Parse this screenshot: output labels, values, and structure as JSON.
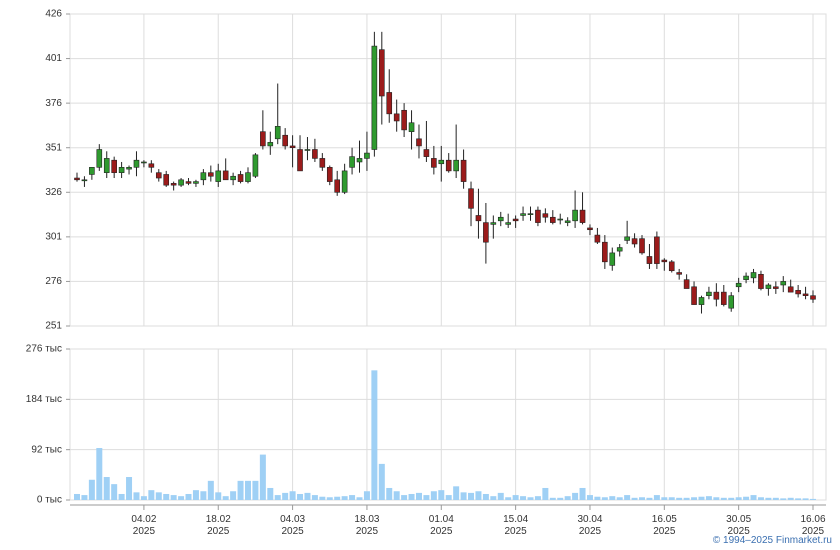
{
  "chart_data": [
    {
      "type": "candlestick",
      "open": [
        334,
        333,
        336,
        340,
        337,
        344,
        337,
        339,
        340,
        343,
        342,
        337,
        336,
        331,
        330,
        332,
        331,
        333,
        337,
        332,
        338,
        333,
        336,
        332,
        335,
        360,
        352,
        356,
        358,
        352,
        350,
        350,
        350,
        345,
        340,
        333,
        326,
        340,
        343,
        345,
        350,
        406,
        382,
        370,
        372,
        360,
        356,
        350,
        345,
        342,
        344,
        338,
        344,
        328,
        313,
        309,
        308,
        310,
        308,
        311,
        313,
        314,
        316,
        314,
        312,
        311,
        309,
        310,
        316,
        306,
        302,
        298,
        285,
        293,
        299,
        300,
        300,
        290,
        301,
        288,
        287,
        281,
        277,
        273,
        263,
        268,
        270,
        270,
        261,
        273,
        277,
        278,
        280,
        272,
        273,
        274,
        273,
        271,
        269,
        268
      ],
      "high": [
        337,
        335,
        340,
        353,
        349,
        346,
        343,
        341,
        349,
        344,
        344,
        339,
        338,
        332,
        334,
        334,
        333,
        339,
        341,
        342,
        345,
        337,
        338,
        340,
        348,
        372,
        360,
        387,
        362,
        358,
        358,
        357,
        356,
        348,
        341,
        338,
        342,
        351,
        355,
        360,
        416,
        416,
        395,
        378,
        376,
        372,
        364,
        366,
        352,
        352,
        348,
        364,
        350,
        332,
        328,
        320,
        313,
        315,
        314,
        313,
        318,
        318,
        318,
        317,
        316,
        314,
        312,
        327,
        326,
        308,
        306,
        302,
        295,
        297,
        310,
        303,
        302,
        297,
        304,
        289,
        288,
        283,
        280,
        276,
        268,
        273,
        275,
        274,
        270,
        278,
        281,
        283,
        282,
        275,
        276,
        279,
        277,
        274,
        273,
        271
      ],
      "low": [
        332,
        329,
        333,
        338,
        334,
        334,
        334,
        336,
        335,
        340,
        337,
        332,
        329,
        327,
        329,
        330,
        329,
        330,
        332,
        329,
        333,
        330,
        331,
        331,
        334,
        350,
        347,
        353,
        350,
        340,
        338,
        344,
        343,
        338,
        330,
        324,
        325,
        336,
        337,
        338,
        346,
        364,
        365,
        360,
        357,
        350,
        345,
        343,
        336,
        332,
        337,
        334,
        328,
        307,
        300,
        286,
        300,
        307,
        306,
        306,
        310,
        310,
        307,
        309,
        308,
        308,
        307,
        306,
        308,
        302,
        297,
        283,
        282,
        290,
        297,
        295,
        291,
        283,
        283,
        282,
        281,
        277,
        272,
        263,
        258,
        266,
        262,
        262,
        259,
        270,
        275,
        275,
        271,
        268,
        269,
        270,
        270,
        267,
        266,
        264
      ],
      "close": [
        333,
        333,
        340,
        350,
        345,
        337,
        340,
        340,
        344,
        343,
        340,
        334,
        330,
        330,
        333,
        331,
        332,
        337,
        335,
        338,
        333,
        335,
        332,
        337,
        347,
        352,
        354,
        363,
        352,
        351,
        338,
        350,
        345,
        340,
        332,
        326,
        338,
        346,
        345,
        348,
        408,
        380,
        370,
        366,
        361,
        365,
        352,
        346,
        340,
        344,
        338,
        344,
        332,
        317,
        310,
        298,
        309,
        312,
        309,
        310,
        314,
        314,
        309,
        312,
        309,
        311,
        310,
        316,
        309,
        305,
        298,
        287,
        292,
        295,
        301,
        297,
        292,
        286,
        286,
        287,
        282,
        280,
        272,
        263,
        267,
        270,
        266,
        263,
        268,
        275,
        279,
        281,
        272,
        274,
        272,
        276,
        270,
        269,
        268,
        266
      ],
      "ylim": [
        251,
        426
      ],
      "yticks": [
        251,
        276,
        301,
        326,
        351,
        376,
        401,
        426
      ],
      "up_color": "#2f9a2f",
      "down_color": "#9b1b1b",
      "grid": true
    },
    {
      "type": "bar",
      "categories": [
        null,
        null,
        null,
        null,
        null,
        null,
        null,
        null,
        null,
        "04.02\n2025",
        null,
        null,
        null,
        null,
        null,
        null,
        null,
        null,
        null,
        "18.02\n2025",
        null,
        null,
        null,
        null,
        null,
        null,
        null,
        null,
        null,
        "04.03\n2025",
        null,
        null,
        null,
        null,
        null,
        null,
        null,
        null,
        null,
        "18.03\n2025",
        null,
        null,
        null,
        null,
        null,
        null,
        null,
        null,
        null,
        "01.04\n2025",
        null,
        null,
        null,
        null,
        null,
        null,
        null,
        null,
        null,
        "15.04\n2025",
        null,
        null,
        null,
        null,
        null,
        null,
        null,
        null,
        null,
        "30.04\n2025",
        null,
        null,
        null,
        null,
        null,
        null,
        null,
        null,
        null,
        "16.05\n2025",
        null,
        null,
        null,
        null,
        null,
        null,
        null,
        null,
        null,
        "30.05\n2025",
        null,
        null,
        null,
        null,
        null,
        null,
        null,
        null,
        null,
        "16.06\n2025"
      ],
      "values": [
        11000,
        9000,
        37000,
        95000,
        42000,
        29000,
        11000,
        42000,
        14000,
        7000,
        18000,
        14000,
        11000,
        9000,
        7000,
        11000,
        18000,
        16000,
        35000,
        14000,
        7000,
        16000,
        35000,
        35000,
        35000,
        83000,
        22000,
        9000,
        13000,
        16000,
        11000,
        13000,
        9000,
        6000,
        5000,
        6000,
        7000,
        9000,
        5000,
        16000,
        237000,
        66000,
        22000,
        16000,
        9000,
        11000,
        13000,
        9000,
        16000,
        18000,
        9000,
        25000,
        14000,
        13000,
        16000,
        11000,
        7000,
        13000,
        5000,
        9000,
        7000,
        5000,
        7000,
        22000,
        4000,
        4000,
        7000,
        13000,
        22000,
        9000,
        6000,
        5000,
        7000,
        5000,
        9000,
        4000,
        5000,
        4000,
        9000,
        5000,
        5000,
        4000,
        4000,
        5000,
        6000,
        7000,
        5000,
        4000,
        4000,
        5000,
        6000,
        9000,
        5000,
        4000,
        4000,
        3000,
        4000,
        3000,
        3000,
        2000
      ],
      "ylim": [
        0,
        276000
      ],
      "yticks": [
        {
          "value": 0,
          "label": "0 тыс"
        },
        {
          "value": 92000,
          "label": "92 тыс"
        },
        {
          "value": 184000,
          "label": "184 тыс"
        },
        {
          "value": 276000,
          "label": "276 тыс"
        }
      ],
      "color": "#9fd0f5",
      "grid": true
    }
  ],
  "footer": "© 1994–2025 Finmarket.ru"
}
